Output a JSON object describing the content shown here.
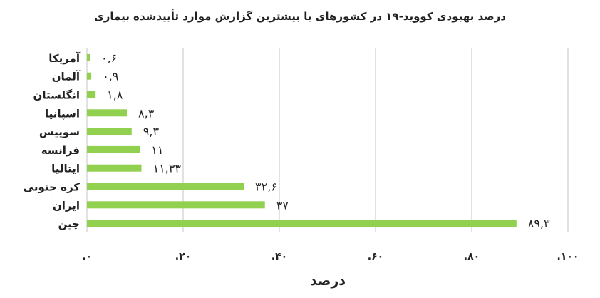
{
  "chart_data": {
    "type": "bar",
    "orientation": "horizontal",
    "title": "درصد بهبودی کووید-۱۹ در کشورهای با بیشترین گزارش موارد تأییدشده بیماری",
    "xlabel": "درصد",
    "ylabel": "",
    "xlim": [
      0,
      100
    ],
    "grid": true,
    "bar_color": "#92d050",
    "grid_color": "#d9d9d9",
    "x_ticks": [
      0,
      20,
      40,
      60,
      80,
      100
    ],
    "x_tick_labels": [
      ".۰",
      ".۲۰",
      ".۴۰",
      ".۶۰",
      ".۸۰",
      ".۱۰۰"
    ],
    "categories": [
      "آمریکا",
      "آلمان",
      "انگلستان",
      "اسپانیا",
      "سوییس",
      "فرانسه",
      "ایتالیا",
      "کره جنوبی",
      "ایران",
      "چین"
    ],
    "values": [
      0.6,
      0.9,
      1.8,
      8.3,
      9.3,
      11,
      11.33,
      32.6,
      37,
      89.3
    ],
    "data_labels": [
      "۰,۶",
      "۰,۹",
      "۱,۸",
      "۸,۳",
      "۹,۳",
      "۱۱",
      "۱۱,۳۳",
      "۳۲,۶",
      "۳۷",
      "۸۹,۳"
    ]
  }
}
